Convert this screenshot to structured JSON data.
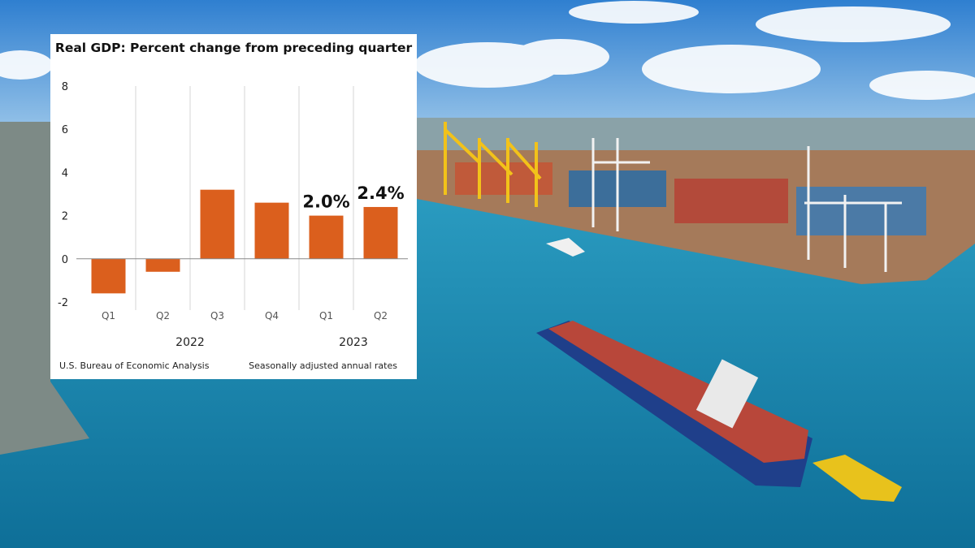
{
  "background": {
    "scene": "harbor-with-container-ship",
    "sky_color": "#3f8fd6",
    "water_color": "#1b7fa6"
  },
  "chart_data": {
    "type": "bar",
    "title": "Real GDP:  Percent change from preceding quarter",
    "categories": [
      "Q1",
      "Q2",
      "Q3",
      "Q4",
      "Q1",
      "Q2"
    ],
    "year_labels": [
      {
        "label": "2022",
        "span": [
          "Q1",
          "Q4"
        ]
      },
      {
        "label": "2023",
        "span": [
          "Q1",
          "Q2"
        ]
      }
    ],
    "values": [
      -1.6,
      -0.6,
      3.2,
      2.6,
      2.0,
      2.4
    ],
    "data_labels": [
      "",
      "",
      "",
      "",
      "2.0%",
      "2.4%"
    ],
    "yticks": [
      "8",
      "6",
      "4",
      "2",
      "0",
      "-2"
    ],
    "ylim": [
      -2,
      8
    ],
    "xlabel": "",
    "ylabel": "",
    "bar_color": "#db5f1d",
    "grid": "vertical separators",
    "legend": "none"
  },
  "footer": {
    "source": "U.S. Bureau of Economic Analysis",
    "note": "Seasonally adjusted annual rates"
  }
}
